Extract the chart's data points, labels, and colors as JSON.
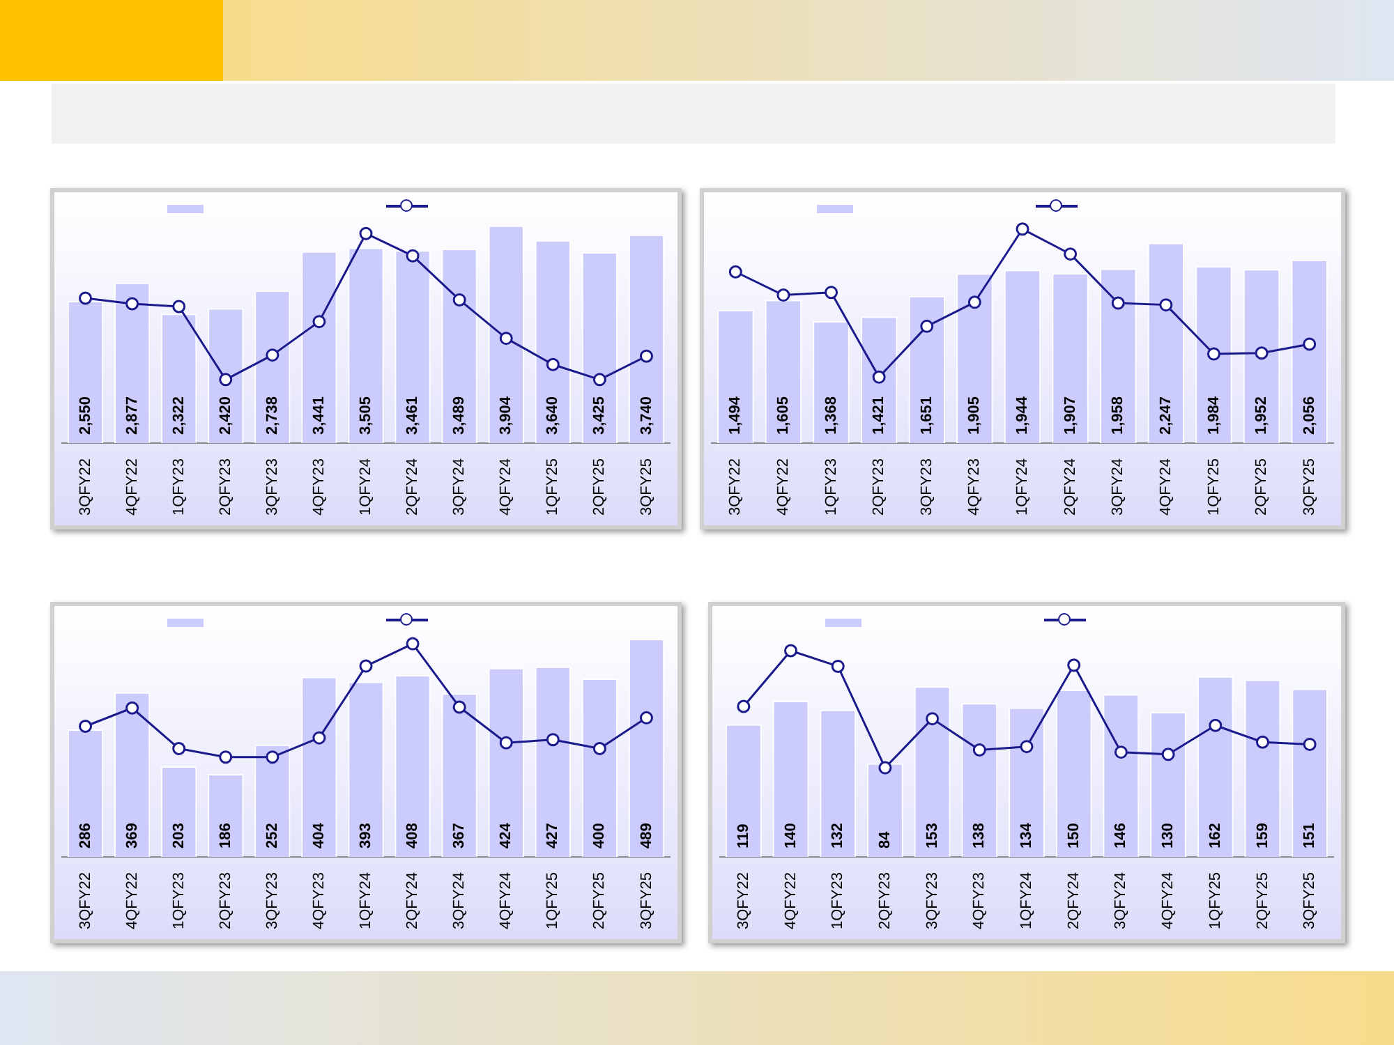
{
  "chart_data": [
    {
      "type": "bar",
      "categories": [
        "3QFY22",
        "4QFY22",
        "1QFY23",
        "2QFY23",
        "3QFY23",
        "4QFY23",
        "1QFY24",
        "2QFY24",
        "3QFY24",
        "4QFY24",
        "1QFY25",
        "2QFY25",
        "3QFY25"
      ],
      "marker": "circle",
      "tick_labels": "x",
      "series": [
        {
          "color": "#ccccfc",
          "values": [
            2550,
            2877,
            2322,
            2420,
            2738,
            3441,
            3505,
            3461,
            3489,
            3904,
            3640,
            3425,
            3740
          ],
          "value_labels": [
            "2,550",
            "2,877",
            "2,322",
            "2,420",
            "2,738",
            "3,441",
            "3,505",
            "3,461",
            "3,489",
            "3,904",
            "3,640",
            "3,425",
            "3,740"
          ]
        },
        {
          "type": "line",
          "color": "#1a1a8c",
          "values": [
            2600,
            2500,
            2450,
            1140,
            1580,
            2180,
            3760,
            3360,
            2570,
            1880,
            1410,
            1140,
            1560
          ]
        }
      ]
    },
    {
      "type": "bar",
      "categories": [
        "3QFY22",
        "4QFY22",
        "1QFY23",
        "2QFY23",
        "3QFY23",
        "4QFY23",
        "1QFY24",
        "2QFY24",
        "3QFY24",
        "4QFY24",
        "1QFY25",
        "2QFY25",
        "3QFY25"
      ],
      "marker": "circle",
      "tick_labels": "x",
      "series": [
        {
          "color": "#ccccfc",
          "values": [
            1494,
            1605,
            1368,
            1421,
            1651,
            1905,
            1944,
            1907,
            1958,
            2247,
            1984,
            1952,
            2056
          ],
          "value_labels": [
            "1,494",
            "1,605",
            "1,368",
            "1,421",
            "1,651",
            "1,905",
            "1,944",
            "1,907",
            "1,958",
            "2,247",
            "1,984",
            "1,952",
            "2,056"
          ]
        },
        {
          "type": "line",
          "color": "#1a1a8c",
          "values": [
            1920,
            1660,
            1690,
            740,
            1310,
            1580,
            2400,
            2120,
            1570,
            1550,
            1000,
            1010,
            1110
          ]
        }
      ]
    },
    {
      "type": "bar",
      "categories": [
        "3QFY22",
        "4QFY22",
        "1QFY23",
        "2QFY23",
        "3QFY23",
        "4QFY23",
        "1QFY24",
        "2QFY24",
        "3QFY24",
        "4QFY24",
        "1QFY25",
        "2QFY25",
        "3QFY25"
      ],
      "marker": "circle",
      "tick_labels": "x",
      "series": [
        {
          "color": "#ccccfc",
          "values": [
            286,
            369,
            203,
            186,
            252,
            404,
            393,
            408,
            367,
            424,
            427,
            400,
            489
          ],
          "value_labels": [
            "286",
            "369",
            "203",
            "186",
            "252",
            "404",
            "393",
            "408",
            "367",
            "424",
            "427",
            "400",
            "489"
          ]
        },
        {
          "type": "line",
          "color": "#1a1a8c",
          "values": [
            293,
            334,
            243,
            224,
            224,
            267,
            428,
            478,
            336,
            256,
            263,
            243,
            312
          ]
        }
      ]
    },
    {
      "type": "bar",
      "categories": [
        "3QFY22",
        "4QFY22",
        "1QFY23",
        "2QFY23",
        "3QFY23",
        "4QFY23",
        "1QFY24",
        "2QFY24",
        "3QFY24",
        "4QFY24",
        "1QFY25",
        "2QFY25",
        "3QFY25"
      ],
      "marker": "circle",
      "tick_labels": "x",
      "series": [
        {
          "color": "#ccccfc",
          "values": [
            119,
            140,
            132,
            84,
            153,
            138,
            134,
            150,
            146,
            130,
            162,
            159,
            151
          ],
          "value_labels": [
            "119",
            "140",
            "132",
            "84",
            "153",
            "138",
            "134",
            "150",
            "146",
            "130",
            "162",
            "159",
            "151"
          ]
        },
        {
          "type": "line",
          "color": "#1a1a8c",
          "values": [
            135,
            185,
            171,
            80,
            124,
            96,
            99,
            172,
            94,
            92,
            118,
            103,
            101
          ]
        }
      ]
    }
  ]
}
